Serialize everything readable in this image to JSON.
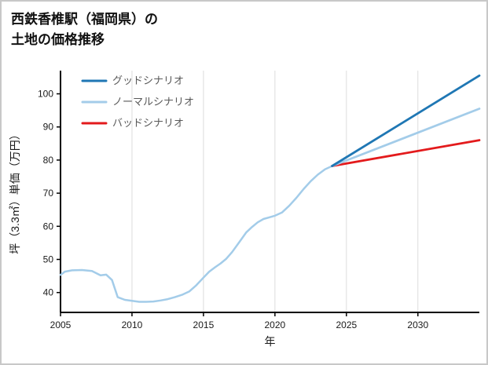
{
  "page": {
    "title_line1": "西鉄香椎駅（福岡県）の",
    "title_line2": "土地の価格推移"
  },
  "chart_data": {
    "type": "line",
    "title": "西鉄香椎駅（福岡県）の土地の価格推移",
    "xlabel": "年",
    "ylabel": "坪（3.3㎡）単価（万円）",
    "xlim": [
      2005,
      2034.3
    ],
    "ylim": [
      34,
      107
    ],
    "xticks": [
      2005,
      2010,
      2015,
      2020,
      2025,
      2030
    ],
    "yticks": [
      40,
      50,
      60,
      70,
      80,
      90,
      100
    ],
    "grid": "vertical-only",
    "legend_position": "upper-left-inside",
    "colors": {
      "good": "#1f77b4",
      "normal": "#a3cce9",
      "bad": "#e31a1c",
      "history": "#a3cce9",
      "grid": "#dcdcdc",
      "axis": "#000000"
    },
    "history": {
      "x": [
        2005,
        2005.3,
        2005.8,
        2006.5,
        2007.2,
        2007.8,
        2008.2,
        2008.6,
        2009,
        2009.5,
        2010,
        2010.5,
        2011,
        2011.5,
        2012,
        2012.5,
        2013,
        2013.5,
        2014,
        2014.5,
        2015,
        2015.4,
        2015.8,
        2016.2,
        2016.6,
        2017,
        2017.5,
        2018,
        2018.4,
        2018.8,
        2019.2,
        2019.6,
        2020,
        2020.5,
        2021,
        2021.5,
        2022,
        2022.5,
        2023,
        2023.5,
        2024
      ],
      "y": [
        45.3,
        46.3,
        46.7,
        46.8,
        46.5,
        45.2,
        45.4,
        43.8,
        38.6,
        37.8,
        37.5,
        37.2,
        37.2,
        37.3,
        37.6,
        38.0,
        38.6,
        39.3,
        40.3,
        42.2,
        44.5,
        46.3,
        47.6,
        48.8,
        50.2,
        52.2,
        55.2,
        58.2,
        59.8,
        61.2,
        62.2,
        62.7,
        63.2,
        64.2,
        66.2,
        68.6,
        71.2,
        73.6,
        75.6,
        77.2,
        78.2
      ]
    },
    "series": [
      {
        "key": "good",
        "name": "グッドシナリオ",
        "x": [
          2024,
          2034.3
        ],
        "y": [
          78.2,
          105.5
        ]
      },
      {
        "key": "normal",
        "name": "ノーマルシナリオ",
        "x": [
          2024,
          2034.3
        ],
        "y": [
          78.2,
          95.5
        ]
      },
      {
        "key": "bad",
        "name": "バッドシナリオ",
        "x": [
          2024,
          2034.3
        ],
        "y": [
          78.2,
          86.0
        ]
      }
    ]
  }
}
